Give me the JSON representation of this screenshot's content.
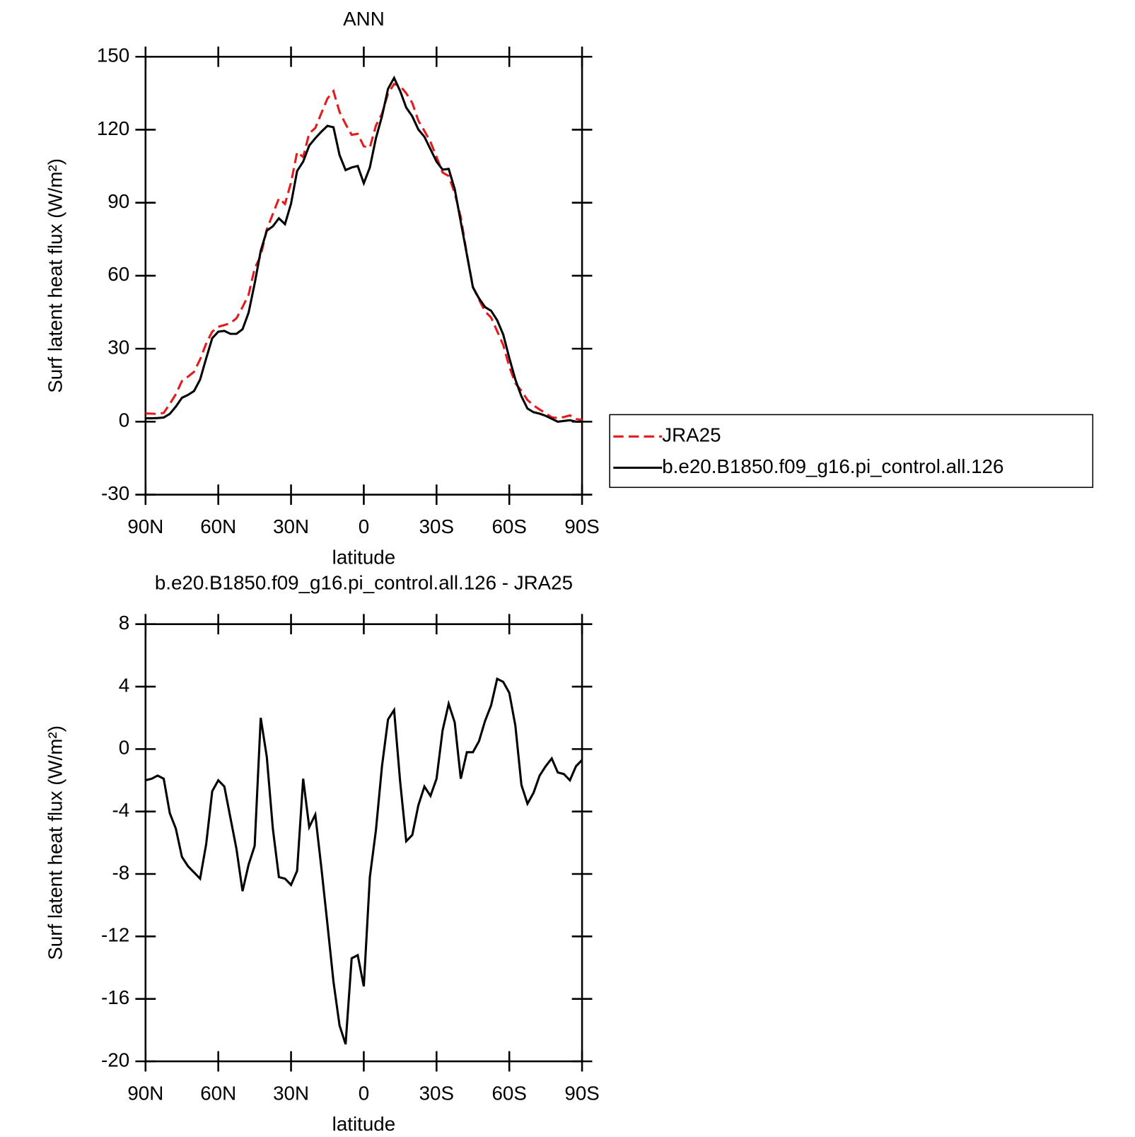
{
  "chart_data": [
    {
      "type": "line",
      "title": "ANN",
      "xlabel": "latitude",
      "ylabel": "Surf latent heat flux (W/m²)",
      "x": [
        90,
        87.5,
        85,
        82.5,
        80,
        77.5,
        75,
        72.5,
        70,
        67.5,
        65,
        62.5,
        60,
        57.5,
        55,
        52.5,
        50,
        47.5,
        45,
        42.5,
        40,
        37.5,
        35,
        32.5,
        30,
        27.5,
        25,
        22.5,
        20,
        17.5,
        15,
        12.5,
        10,
        7.5,
        5,
        2.5,
        0,
        -2.5,
        -5,
        -7.5,
        -10,
        -12.5,
        -15,
        -17.5,
        -20,
        -22.5,
        -25,
        -27.5,
        -30,
        -32.5,
        -35,
        -37.5,
        -40,
        -42.5,
        -45,
        -47.5,
        -50,
        -52.5,
        -55,
        -57.5,
        -60,
        -62.5,
        -65,
        -67.5,
        -70,
        -72.5,
        -75,
        -77.5,
        -80,
        -82.5,
        -85,
        -87.5,
        -90
      ],
      "series": [
        {
          "name": "JRA25",
          "color": "#e41a1c",
          "dash": true,
          "values": [
            3.4,
            3.3,
            3.2,
            3.6,
            7.3,
            11.3,
            16.7,
            18.5,
            20.5,
            25.6,
            32.1,
            37,
            39,
            39.7,
            40.5,
            42.5,
            47.1,
            52.2,
            63,
            68.2,
            79,
            85.4,
            91.8,
            89.5,
            98.3,
            110.8,
            108.8,
            118.5,
            120.7,
            126.8,
            132.8,
            135.9,
            127.3,
            122.3,
            117.9,
            118.3,
            113.2,
            112.7,
            121.7,
            126.6,
            134.9,
            138.8,
            138,
            135,
            131,
            123.7,
            119.5,
            115,
            108.8,
            102.4,
            101,
            93.9,
            84,
            68.9,
            55.4,
            50.2,
            45.3,
            42.8,
            37.2,
            31.5,
            22.6,
            15.8,
            12.7,
            8.9,
            6.7,
            5,
            3.5,
            1.8,
            1.5,
            1.9,
            2.6,
            1.1,
            0.7
          ]
        },
        {
          "name": "b.e20.B1850.f09_g16.pi_control.all.126",
          "color": "#000000",
          "dash": false,
          "values": [
            1.4,
            1.4,
            1.5,
            1.7,
            3.2,
            6.2,
            9.8,
            11,
            12.6,
            17.3,
            26,
            34.3,
            37,
            37.3,
            36.1,
            36.1,
            38,
            44.8,
            56.8,
            70.2,
            78.5,
            80.3,
            83.6,
            81.2,
            89.6,
            103,
            106.9,
            113.5,
            116.5,
            119.2,
            121.6,
            121,
            109.6,
            103.4,
            104.5,
            105.1,
            98,
            104.5,
            116.5,
            125.5,
            136.8,
            141.3,
            135.9,
            129.1,
            125.5,
            120.1,
            117.1,
            112,
            106.9,
            103.6,
            103.9,
            95.6,
            82.1,
            68.7,
            55.2,
            50.7,
            47.1,
            45.6,
            41.7,
            35.8,
            26.2,
            17.3,
            10.4,
            5.4,
            3.9,
            3.3,
            2.4,
            1.2,
            0,
            0.3,
            0.6,
            0,
            0
          ]
        }
      ],
      "xlim": [
        90,
        -90
      ],
      "xticks": [
        {
          "value": 90,
          "label": "90N"
        },
        {
          "value": 60,
          "label": "60N"
        },
        {
          "value": 30,
          "label": "30N"
        },
        0,
        {
          "value": -30,
          "label": "30S"
        },
        {
          "value": -60,
          "label": "60S"
        },
        {
          "value": -90,
          "label": "90S"
        }
      ],
      "ylim": [
        -30,
        150
      ],
      "yticks": [
        -30,
        0,
        30,
        60,
        90,
        120,
        150
      ],
      "legend": "right"
    },
    {
      "type": "line",
      "title": "b.e20.B1850.f09_g16.pi_control.all.126 - JRA25",
      "xlabel": "latitude",
      "ylabel": "Surf latent heat flux (W/m²)",
      "x": [
        90,
        87.5,
        85,
        82.5,
        80,
        77.5,
        75,
        72.5,
        70,
        67.5,
        65,
        62.5,
        60,
        57.5,
        55,
        52.5,
        50,
        47.5,
        45,
        42.5,
        40,
        37.5,
        35,
        32.5,
        30,
        27.5,
        25,
        22.5,
        20,
        17.5,
        15,
        12.5,
        10,
        7.5,
        5,
        2.5,
        0,
        -2.5,
        -5,
        -7.5,
        -10,
        -12.5,
        -15,
        -17.5,
        -20,
        -22.5,
        -25,
        -27.5,
        -30,
        -32.5,
        -35,
        -37.5,
        -40,
        -42.5,
        -45,
        -47.5,
        -50,
        -52.5,
        -55,
        -57.5,
        -60,
        -62.5,
        -65,
        -67.5,
        -70,
        -72.5,
        -75,
        -77.5,
        -80,
        -82.5,
        -85,
        -87.5,
        -90
      ],
      "values": [
        -2,
        -1.9,
        -1.7,
        -1.9,
        -4.1,
        -5.1,
        -6.9,
        -7.5,
        -7.9,
        -8.3,
        -6.1,
        -2.7,
        -2,
        -2.4,
        -4.4,
        -6.4,
        -9.1,
        -7.4,
        -6.2,
        2,
        -0.5,
        -5.1,
        -8.2,
        -8.3,
        -8.7,
        -7.8,
        -1.9,
        -5,
        -4.2,
        -7.6,
        -11.2,
        -14.9,
        -17.7,
        -18.9,
        -13.4,
        -13.2,
        -15.2,
        -8.2,
        -5.2,
        -1.1,
        1.9,
        2.5,
        -2.1,
        -5.9,
        -5.5,
        -3.6,
        -2.4,
        -3,
        -1.9,
        1.2,
        2.9,
        1.7,
        -1.9,
        -0.2,
        -0.2,
        0.5,
        1.8,
        2.8,
        4.5,
        4.3,
        3.6,
        1.5,
        -2.3,
        -3.5,
        -2.8,
        -1.7,
        -1.1,
        -0.6,
        -1.5,
        -1.6,
        -2,
        -1.1,
        -0.7
      ],
      "color": "#000000",
      "xlim": [
        90,
        -90
      ],
      "xticks": [
        {
          "value": 90,
          "label": "90N"
        },
        {
          "value": 60,
          "label": "60N"
        },
        {
          "value": 30,
          "label": "30N"
        },
        0,
        {
          "value": -30,
          "label": "30S"
        },
        {
          "value": -60,
          "label": "60S"
        },
        {
          "value": -90,
          "label": "90S"
        }
      ],
      "ylim": [
        -20,
        8
      ],
      "yticks": [
        -20,
        -16,
        -12,
        -8,
        -4,
        0,
        4,
        8
      ]
    }
  ]
}
